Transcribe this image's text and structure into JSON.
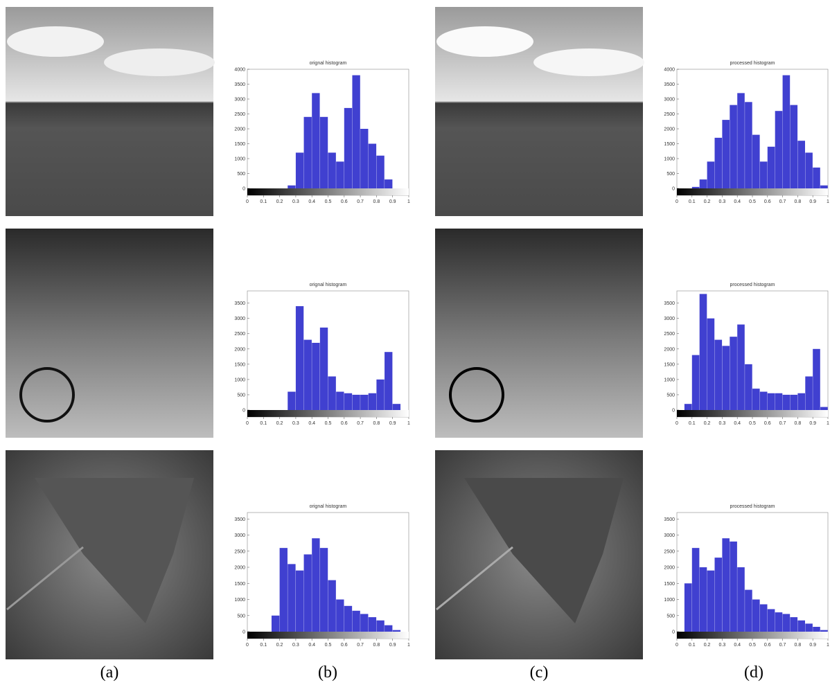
{
  "labels": [
    "(a)",
    "(b)",
    "(c)",
    "(d)"
  ],
  "chart_data": [
    {
      "type": "histogram",
      "title": "orignal histogram",
      "color": "#4040d0",
      "bins": [
        0,
        0.05,
        0.1,
        0.15,
        0.2,
        0.25,
        0.3,
        0.35,
        0.4,
        0.45,
        0.5,
        0.55,
        0.6,
        0.65,
        0.7,
        0.75,
        0.8,
        0.85,
        0.9,
        0.95,
        1
      ],
      "counts": [
        0,
        0,
        0,
        0,
        0,
        100,
        1200,
        2400,
        3200,
        2400,
        1200,
        900,
        2700,
        3800,
        2000,
        1500,
        1100,
        300,
        0,
        0
      ],
      "xlim": [
        0,
        1
      ],
      "xticks": [
        0,
        0.1,
        0.2,
        0.3,
        0.4,
        0.5,
        0.6,
        0.7,
        0.8,
        0.9,
        1
      ],
      "ylim": [
        0,
        4000
      ],
      "yticks": [
        0,
        500,
        1000,
        1500,
        2000,
        2500,
        3000,
        3500,
        4000
      ]
    },
    {
      "type": "histogram",
      "title": "processed histogram",
      "color": "#4040d0",
      "bins": [
        0,
        0.05,
        0.1,
        0.15,
        0.2,
        0.25,
        0.3,
        0.35,
        0.4,
        0.45,
        0.5,
        0.55,
        0.6,
        0.65,
        0.7,
        0.75,
        0.8,
        0.85,
        0.9,
        0.95,
        1
      ],
      "counts": [
        0,
        0,
        50,
        300,
        900,
        1700,
        2300,
        2800,
        3200,
        2900,
        1800,
        900,
        1400,
        2600,
        3800,
        2800,
        1600,
        1200,
        700,
        100
      ],
      "xlim": [
        0,
        1
      ],
      "xticks": [
        0,
        0.1,
        0.2,
        0.3,
        0.4,
        0.5,
        0.6,
        0.7,
        0.8,
        0.9,
        1
      ],
      "ylim": [
        0,
        4000
      ],
      "yticks": [
        0,
        500,
        1000,
        1500,
        2000,
        2500,
        3000,
        3500,
        4000
      ]
    },
    {
      "type": "histogram",
      "title": "orignal histogram",
      "color": "#4040d0",
      "bins": [
        0,
        0.05,
        0.1,
        0.15,
        0.2,
        0.25,
        0.3,
        0.35,
        0.4,
        0.45,
        0.5,
        0.55,
        0.6,
        0.65,
        0.7,
        0.75,
        0.8,
        0.85,
        0.9,
        0.95,
        1
      ],
      "counts": [
        0,
        0,
        0,
        0,
        0,
        600,
        3400,
        2300,
        2200,
        2700,
        1100,
        600,
        550,
        500,
        500,
        550,
        1000,
        1900,
        200,
        0
      ],
      "xlim": [
        0,
        1
      ],
      "xticks": [
        0,
        0.1,
        0.2,
        0.3,
        0.4,
        0.5,
        0.6,
        0.7,
        0.8,
        0.9,
        1
      ],
      "ylim": [
        0,
        3900
      ],
      "yticks": [
        0,
        500,
        1000,
        1500,
        2000,
        2500,
        3000,
        3500
      ]
    },
    {
      "type": "histogram",
      "title": "processed histogram",
      "color": "#4040d0",
      "bins": [
        0,
        0.05,
        0.1,
        0.15,
        0.2,
        0.25,
        0.3,
        0.35,
        0.4,
        0.45,
        0.5,
        0.55,
        0.6,
        0.65,
        0.7,
        0.75,
        0.8,
        0.85,
        0.9,
        0.95,
        1
      ],
      "counts": [
        0,
        200,
        1800,
        3800,
        3000,
        2300,
        2100,
        2400,
        2800,
        1500,
        700,
        600,
        550,
        550,
        500,
        500,
        550,
        1100,
        2000,
        100
      ],
      "xlim": [
        0,
        1
      ],
      "xticks": [
        0,
        0.1,
        0.2,
        0.3,
        0.4,
        0.5,
        0.6,
        0.7,
        0.8,
        0.9,
        1
      ],
      "ylim": [
        0,
        3900
      ],
      "yticks": [
        0,
        500,
        1000,
        1500,
        2000,
        2500,
        3000,
        3500
      ]
    },
    {
      "type": "histogram",
      "title": "orignal histogram",
      "color": "#4040d0",
      "bins": [
        0,
        0.05,
        0.1,
        0.15,
        0.2,
        0.25,
        0.3,
        0.35,
        0.4,
        0.45,
        0.5,
        0.55,
        0.6,
        0.65,
        0.7,
        0.75,
        0.8,
        0.85,
        0.9,
        0.95,
        1
      ],
      "counts": [
        0,
        0,
        0,
        500,
        2600,
        2100,
        1900,
        2400,
        2900,
        2600,
        1600,
        1000,
        800,
        650,
        550,
        450,
        350,
        200,
        50,
        0
      ],
      "xlim": [
        0,
        1
      ],
      "xticks": [
        0,
        0.1,
        0.2,
        0.3,
        0.4,
        0.5,
        0.6,
        0.7,
        0.8,
        0.9,
        1
      ],
      "ylim": [
        0,
        3700
      ],
      "yticks": [
        0,
        500,
        1000,
        1500,
        2000,
        2500,
        3000,
        3500
      ]
    },
    {
      "type": "histogram",
      "title": "processed histogram",
      "color": "#4040d0",
      "bins": [
        0,
        0.05,
        0.1,
        0.15,
        0.2,
        0.25,
        0.3,
        0.35,
        0.4,
        0.45,
        0.5,
        0.55,
        0.6,
        0.65,
        0.7,
        0.75,
        0.8,
        0.85,
        0.9,
        0.95,
        1
      ],
      "counts": [
        0,
        1500,
        2600,
        2000,
        1900,
        2300,
        2900,
        2800,
        2000,
        1300,
        1000,
        850,
        700,
        600,
        550,
        450,
        350,
        250,
        150,
        50
      ],
      "xlim": [
        0,
        1
      ],
      "xticks": [
        0,
        0.1,
        0.2,
        0.3,
        0.4,
        0.5,
        0.6,
        0.7,
        0.8,
        0.9,
        1
      ],
      "ylim": [
        0,
        3700
      ],
      "yticks": [
        0,
        500,
        1000,
        1500,
        2000,
        2500,
        3000,
        3500
      ]
    }
  ]
}
